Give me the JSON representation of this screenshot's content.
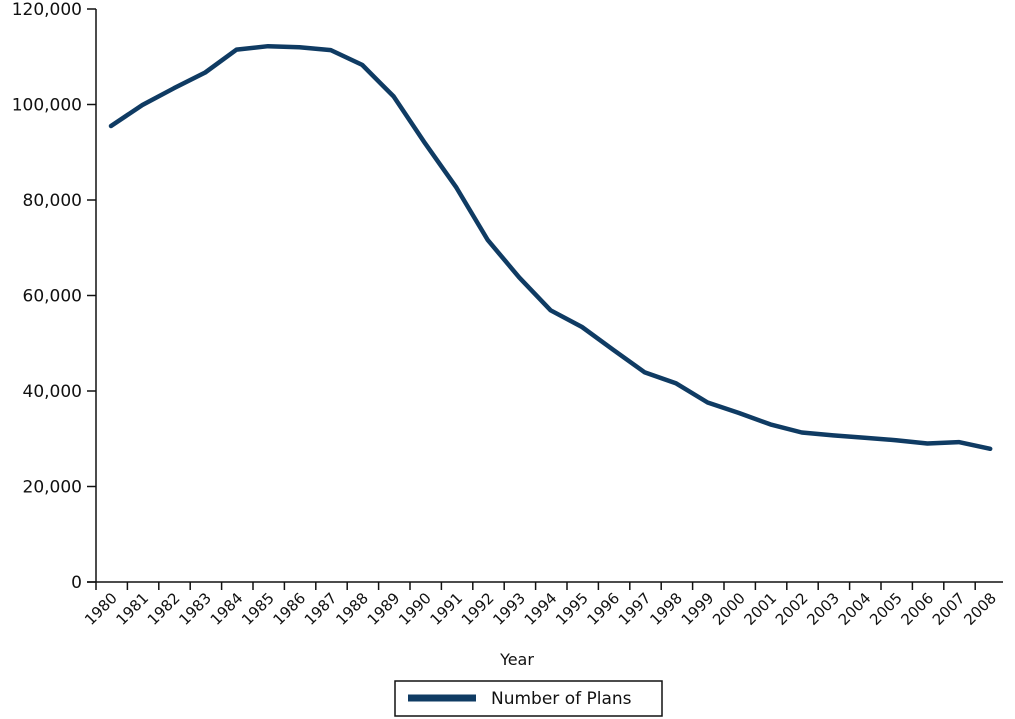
{
  "chart_data": {
    "type": "line",
    "title": "",
    "xlabel": "Year",
    "ylabel": "",
    "ylim": [
      0,
      120000
    ],
    "yticks": [
      0,
      20000,
      40000,
      60000,
      80000,
      100000,
      120000
    ],
    "ytick_labels": [
      "0",
      "20,000",
      "40,000",
      "60,000",
      "80,000",
      "100,000",
      "120,000"
    ],
    "categories": [
      "1980",
      "1981",
      "1982",
      "1983",
      "1984",
      "1985",
      "1986",
      "1987",
      "1988",
      "1989",
      "1990",
      "1991",
      "1992",
      "1993",
      "1994",
      "1995",
      "1996",
      "1997",
      "1998",
      "1999",
      "2000",
      "2001",
      "2002",
      "2003",
      "2004",
      "2005",
      "2006",
      "2007",
      "2008"
    ],
    "series": [
      {
        "name": "Number of Plans",
        "color": "#0f3b63",
        "values": [
          95500,
          99900,
          103400,
          106700,
          111500,
          112200,
          112000,
          111400,
          108300,
          101700,
          91900,
          82600,
          71600,
          63800,
          56900,
          53400,
          48600,
          43900,
          41600,
          37600,
          35400,
          33000,
          31300,
          30700,
          30200,
          29700,
          29000,
          29300,
          27900
        ]
      }
    ],
    "legend": {
      "position": "bottom-center",
      "entries": [
        "Number of Plans"
      ]
    },
    "grid": false
  }
}
